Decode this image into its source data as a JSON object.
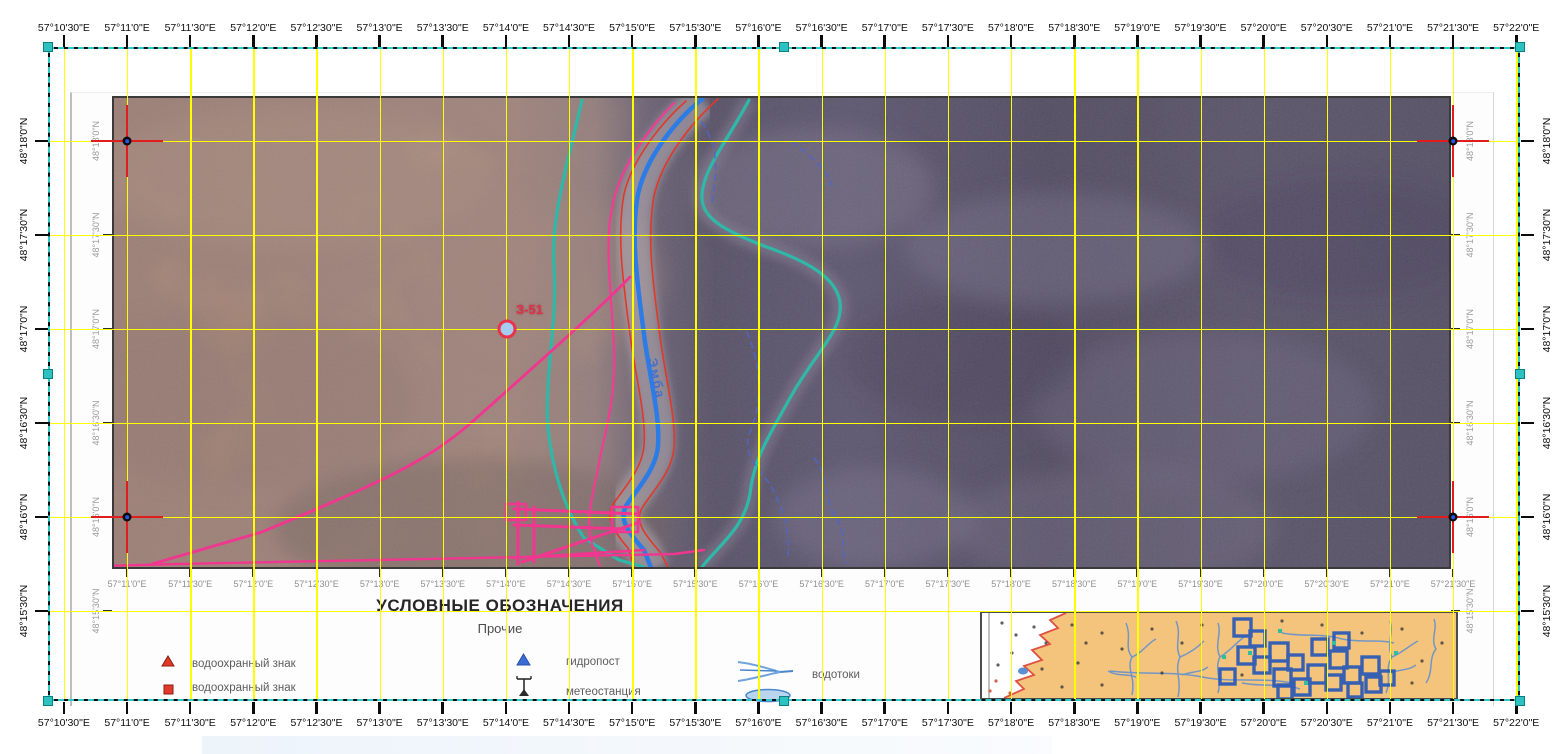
{
  "graticule": {
    "lon_labels": [
      "57°10'30\"E",
      "57°11'0\"E",
      "57°11'30\"E",
      "57°12'0\"E",
      "57°12'30\"E",
      "57°13'0\"E",
      "57°13'30\"E",
      "57°14'0\"E",
      "57°14'30\"E",
      "57°15'0\"E",
      "57°15'30\"E",
      "57°16'0\"E",
      "57°16'30\"E",
      "57°17'0\"E",
      "57°17'30\"E",
      "57°18'0\"E",
      "57°18'30\"E",
      "57°19'0\"E",
      "57°19'30\"E",
      "57°20'0\"E",
      "57°20'30\"E",
      "57°21'0\"E",
      "57°21'30\"E",
      "57°22'0\"E"
    ],
    "lat_labels": [
      "48°18'0\"N",
      "48°17'30\"N",
      "48°17'0\"N",
      "48°16'30\"N",
      "48°16'0\"N",
      "48°15'30\"N"
    ]
  },
  "scan": {
    "well_label": "З-51",
    "river_label": "Эмба"
  },
  "legend": {
    "title": "УСЛОВНЫЕ ОБОЗНАЧЕНИЯ",
    "subtitle": "Прочие",
    "items": [
      {
        "icon": "red-triangle-icon",
        "label": "водоохранный знак"
      },
      {
        "icon": "red-square-icon",
        "label": "водоохранный знак"
      },
      {
        "icon": "blue-triangle-icon",
        "label": "гидропост"
      },
      {
        "icon": "weather-station-icon",
        "label": "метеостанция"
      },
      {
        "icon": "streams-icon",
        "label": "водотоки"
      }
    ]
  },
  "colors": {
    "grid": "#ffff00",
    "selection": "#2cc2c2",
    "river": "#2d7ce6",
    "road": "#f0368f",
    "contour": "#2fb8a8",
    "red_line": "#e0392a",
    "dashed_stream": "#5066c8",
    "crosshair": "#e01d1d",
    "inset_land": "#f5c47c",
    "inset_rivers": "#5b8fd4",
    "inset_squares": "#2456b8"
  }
}
